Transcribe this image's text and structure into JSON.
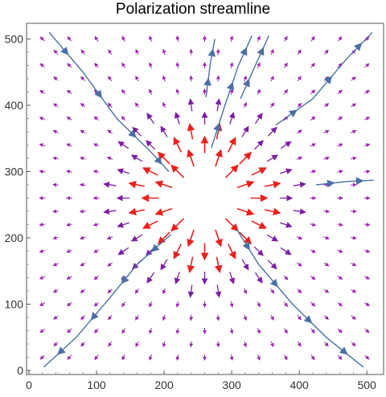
{
  "chart_data": {
    "type": "vector-field",
    "title": "Polarization streamline",
    "xlim": [
      0,
      520
    ],
    "ylim": [
      0,
      520
    ],
    "x_ticks": [
      0,
      100,
      200,
      300,
      400,
      500
    ],
    "y_ticks": [
      0,
      100,
      200,
      300,
      400,
      500
    ],
    "grid": false,
    "field": {
      "description_values": "radial vector field diverging from center point",
      "center": [
        260,
        260
      ],
      "grid_start": 20,
      "grid_step": 40,
      "grid_count": 13,
      "minor_offset": 20,
      "strong_radius": 110,
      "purple_radius": 150
    },
    "colors": {
      "strong_arrow": "#e8211d",
      "medium_arrow": "#7b1fa2",
      "weak_arrow": "#9c27b0",
      "streamline": "#4a6fa5",
      "axis": "#333333"
    },
    "streamlines": [
      {
        "name": "upper-left",
        "points": [
          [
            30,
            510
          ],
          [
            80,
            450
          ],
          [
            130,
            380
          ],
          [
            180,
            330
          ],
          [
            207,
            300
          ]
        ]
      },
      {
        "name": "upper-right-1",
        "points": [
          [
            262,
            412
          ],
          [
            268,
            460
          ],
          [
            275,
            500
          ]
        ]
      },
      {
        "name": "upper-right-2",
        "points": [
          [
            270,
            336
          ],
          [
            290,
            400
          ],
          [
            310,
            460
          ],
          [
            330,
            505
          ]
        ]
      },
      {
        "name": "upper-right-3",
        "points": [
          [
            313,
            410
          ],
          [
            335,
            460
          ],
          [
            355,
            505
          ]
        ]
      },
      {
        "name": "upper-right-4",
        "points": [
          [
            365,
            370
          ],
          [
            420,
            410
          ],
          [
            470,
            470
          ],
          [
            508,
            510
          ]
        ]
      },
      {
        "name": "right",
        "points": [
          [
            425,
            280
          ],
          [
            470,
            285
          ],
          [
            510,
            287
          ]
        ]
      },
      {
        "name": "lower-right",
        "points": [
          [
            308,
            212
          ],
          [
            340,
            160
          ],
          [
            390,
            100
          ],
          [
            440,
            50
          ],
          [
            495,
            5
          ]
        ]
      },
      {
        "name": "lower-left",
        "points": [
          [
            210,
            205
          ],
          [
            160,
            160
          ],
          [
            120,
            110
          ],
          [
            70,
            50
          ],
          [
            22,
            5
          ]
        ]
      }
    ]
  }
}
